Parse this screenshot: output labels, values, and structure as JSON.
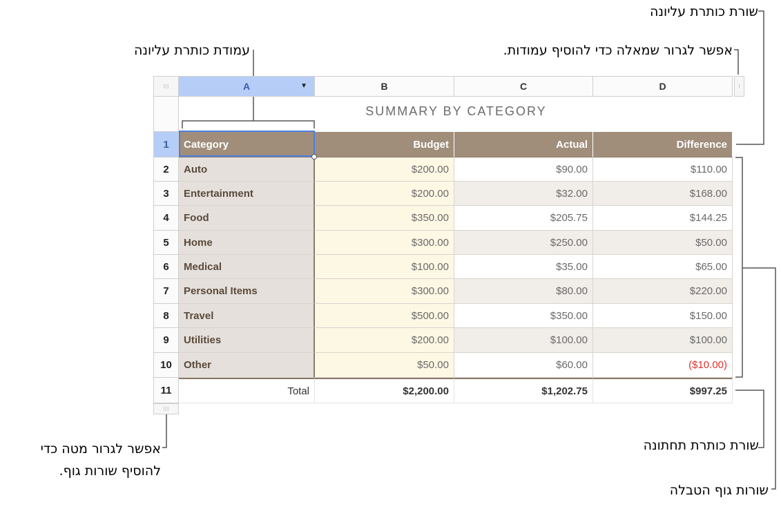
{
  "callouts": {
    "header_row": "שורת כותרת עליונה",
    "header_column": "עמודת כותרת עליונה",
    "add_columns": "אפשר לגרור שמאלה כדי להוסיף עמודות.",
    "footer_row": "שורת כותרת תחתונה",
    "body_rows": "שורות גוף הטבלה",
    "add_rows": "אפשר לגרור מטה כדי להוסיף שורות גוף."
  },
  "table": {
    "title": "SUMMARY BY CATEGORY",
    "column_letters": [
      "A",
      "B",
      "C",
      "D"
    ],
    "row_numbers": [
      "1",
      "2",
      "3",
      "4",
      "5",
      "6",
      "7",
      "8",
      "9",
      "10",
      "11"
    ],
    "header": [
      "Category",
      "Budget",
      "Actual",
      "Difference"
    ],
    "rows": [
      {
        "category": "Auto",
        "budget": "$200.00",
        "actual": "$90.00",
        "difference": "$110.00"
      },
      {
        "category": "Entertainment",
        "budget": "$200.00",
        "actual": "$32.00",
        "difference": "$168.00"
      },
      {
        "category": "Food",
        "budget": "$350.00",
        "actual": "$205.75",
        "difference": "$144.25"
      },
      {
        "category": "Home",
        "budget": "$300.00",
        "actual": "$250.00",
        "difference": "$50.00"
      },
      {
        "category": "Medical",
        "budget": "$100.00",
        "actual": "$35.00",
        "difference": "$65.00"
      },
      {
        "category": "Personal Items",
        "budget": "$300.00",
        "actual": "$80.00",
        "difference": "$220.00"
      },
      {
        "category": "Travel",
        "budget": "$500.00",
        "actual": "$350.00",
        "difference": "$150.00"
      },
      {
        "category": "Utilities",
        "budget": "$200.00",
        "actual": "$100.00",
        "difference": "$100.00"
      },
      {
        "category": "Other",
        "budget": "$50.00",
        "actual": "$60.00",
        "difference": "($10.00)"
      }
    ],
    "footer": {
      "label": "Total",
      "budget": "$2,200.00",
      "actual": "$1,202.75",
      "difference": "$997.25"
    }
  },
  "colors": {
    "header_fill": "#a08e7b",
    "category_fill": "#e5e0db",
    "budget_fill": "#fdf8e4",
    "selection": "#b6cdf7",
    "negative": "#e0312c"
  }
}
